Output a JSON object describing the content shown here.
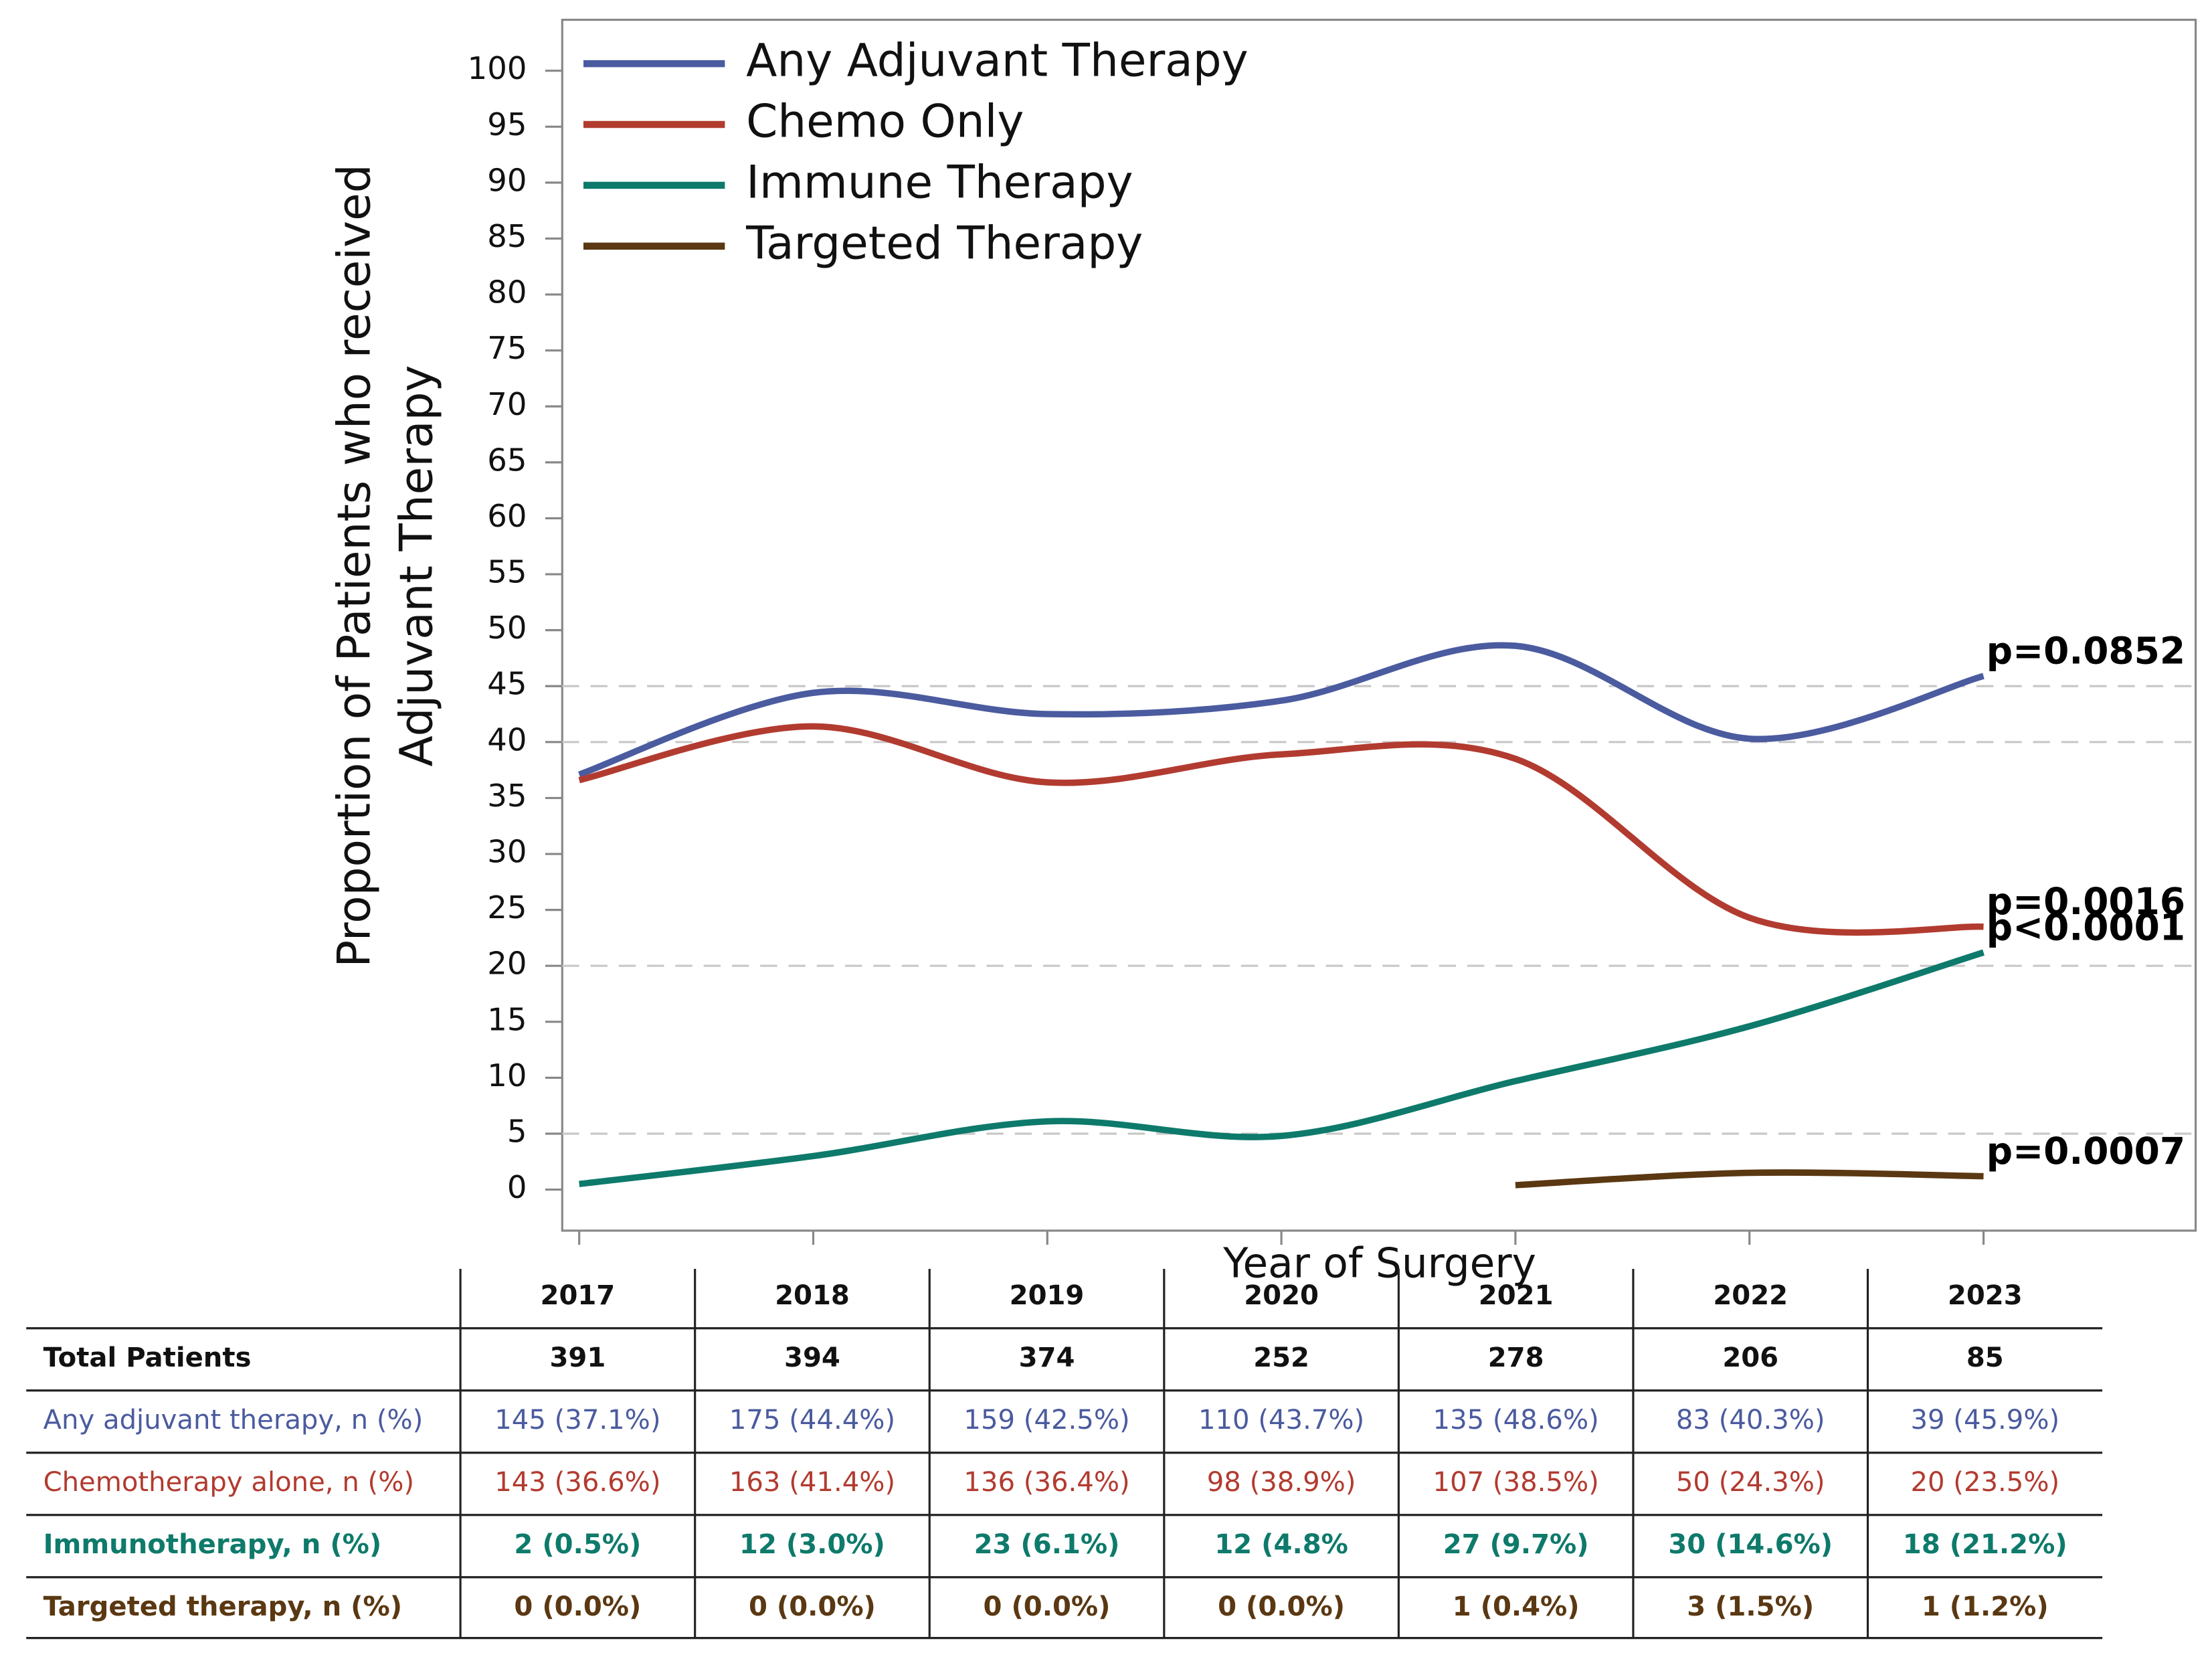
{
  "chart_data": {
    "type": "line",
    "ylabel": [
      "Proportion of Patients who received",
      "Adjuvant Therapy"
    ],
    "xlabel": "Year of Surgery",
    "categories": [
      "2017",
      "2018",
      "2019",
      "2020",
      "2021",
      "2022",
      "2023"
    ],
    "ylim": [
      0,
      100
    ],
    "yticks": [
      0,
      5,
      10,
      15,
      20,
      25,
      30,
      35,
      40,
      45,
      50,
      55,
      60,
      65,
      70,
      75,
      80,
      85,
      90,
      95,
      100
    ],
    "reference_lines": [
      45,
      40,
      20,
      5
    ],
    "legend": "upper-left",
    "series": [
      {
        "name": "Any Adjuvant Therapy",
        "color": "#4b5b9f",
        "values": [
          37.1,
          44.4,
          42.5,
          43.7,
          48.6,
          40.3,
          45.9
        ],
        "annotation": "p=0.0852"
      },
      {
        "name": "Chemo Only",
        "color": "#b23b30",
        "values": [
          36.6,
          41.4,
          36.4,
          38.9,
          38.5,
          24.3,
          23.5
        ],
        "annotation": "p=0.0016"
      },
      {
        "name": "Immune Therapy",
        "color": "#0e7a6b",
        "values": [
          0.5,
          3.0,
          6.1,
          4.8,
          9.7,
          14.6,
          21.2
        ],
        "annotation": "p<0.0001"
      },
      {
        "name": "Targeted Therapy",
        "color": "#5a3812",
        "values": [
          null,
          null,
          null,
          null,
          0.4,
          1.5,
          1.2
        ],
        "annotation": "p=0.0007"
      }
    ],
    "table": {
      "rows": [
        [
          "Total Patients",
          391,
          394,
          374,
          252,
          278,
          206,
          85
        ],
        [
          "Any adjuvant therapy, n (%)",
          "145 (37.1%)",
          "175 (44.4%)",
          "159 (42.5%)",
          "110 (43.7%)",
          "135 (48.6%)",
          "83 (40.3%)",
          "39 (45.9%)"
        ],
        [
          "Chemotherapy alone, n (%)",
          "143 (36.6%)",
          "163 (41.4%)",
          "136 (36.4%)",
          "98 (38.9%)",
          "107 (38.5%)",
          "50 (24.3%)",
          "20 (23.5%)"
        ],
        [
          "Immunotherapy, n (%)",
          "2 (0.5%)",
          "12 (3.0%)",
          "23 (6.1%)",
          "12 (4.8%",
          "27 (9.7%)",
          "30 (14.6%)",
          "18 (21.2%)"
        ],
        [
          "Targeted therapy, n (%)",
          "0 (0.0%)",
          "0 (0.0%)",
          "0 (0.0%)",
          "0 (0.0%)",
          "1 (0.4%)",
          "3 (1.5%)",
          "1 (1.2%)"
        ]
      ]
    }
  }
}
